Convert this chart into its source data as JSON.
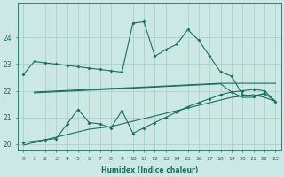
{
  "xlabel": "Humidex (Indice chaleur)",
  "background_color": "#cce8e4",
  "grid_color": "#aad4cc",
  "line_color": "#1a6e62",
  "xlim": [
    -0.5,
    23.5
  ],
  "ylim": [
    19.75,
    25.3
  ],
  "yticks": [
    20,
    21,
    22,
    23,
    24
  ],
  "xticks": [
    0,
    1,
    2,
    3,
    4,
    5,
    6,
    7,
    8,
    9,
    10,
    11,
    12,
    13,
    14,
    15,
    16,
    17,
    18,
    19,
    20,
    21,
    22,
    23
  ],
  "line1_x": [
    0,
    1,
    2,
    3,
    4,
    5,
    6,
    7,
    8,
    9,
    10,
    11,
    12,
    13,
    14,
    15,
    16,
    17,
    18,
    19,
    20,
    21,
    22
  ],
  "line1_y": [
    22.6,
    23.1,
    23.05,
    23.0,
    22.95,
    22.9,
    22.85,
    22.8,
    22.75,
    22.7,
    24.55,
    24.6,
    23.3,
    23.55,
    23.75,
    24.3,
    23.9,
    23.3,
    22.7,
    22.55,
    21.85,
    21.8,
    21.9
  ],
  "line2_x": [
    1,
    2,
    3,
    4,
    5,
    6,
    7,
    8,
    9,
    10,
    11,
    12,
    13,
    14,
    15,
    16,
    17,
    18,
    19,
    20,
    21,
    22,
    23
  ],
  "line2_y": [
    21.95,
    21.97,
    21.99,
    22.01,
    22.03,
    22.05,
    22.07,
    22.09,
    22.1,
    22.12,
    22.14,
    22.16,
    22.18,
    22.2,
    22.22,
    22.24,
    22.26,
    22.28,
    22.28,
    22.28,
    22.28,
    22.28,
    22.28
  ],
  "line2b_x": [
    1,
    2,
    3,
    4,
    5,
    6,
    7,
    8,
    9,
    10,
    11,
    12,
    13,
    14,
    15,
    16,
    17,
    18,
    19,
    20,
    21,
    22,
    23
  ],
  "line2b_y": [
    21.92,
    21.94,
    21.96,
    21.98,
    22.0,
    22.02,
    22.04,
    22.06,
    22.08,
    22.1,
    22.12,
    22.14,
    22.16,
    22.18,
    22.2,
    22.22,
    22.24,
    22.26,
    21.95,
    21.75,
    21.75,
    21.9,
    21.6
  ],
  "line3_x": [
    0,
    1,
    2,
    3,
    4,
    5,
    6,
    7,
    8,
    9,
    10,
    11,
    12,
    13,
    14,
    15,
    16,
    17,
    18,
    19,
    20,
    21,
    22,
    23
  ],
  "line3_y": [
    20.05,
    20.1,
    20.15,
    20.2,
    20.75,
    21.3,
    20.8,
    20.75,
    20.6,
    21.25,
    20.4,
    20.6,
    20.8,
    21.0,
    21.2,
    21.4,
    21.55,
    21.7,
    21.85,
    21.95,
    22.0,
    22.05,
    22.0,
    21.6
  ],
  "line4_x": [
    0,
    1,
    2,
    3,
    4,
    5,
    6,
    7,
    8,
    9,
    10,
    11,
    12,
    13,
    14,
    15,
    16,
    17,
    18,
    19,
    20,
    21,
    22,
    23
  ],
  "line4_y": [
    19.95,
    20.05,
    20.15,
    20.25,
    20.35,
    20.45,
    20.55,
    20.6,
    20.65,
    20.75,
    20.85,
    20.95,
    21.05,
    21.15,
    21.25,
    21.35,
    21.45,
    21.55,
    21.65,
    21.75,
    21.8,
    21.85,
    21.75,
    21.6
  ]
}
